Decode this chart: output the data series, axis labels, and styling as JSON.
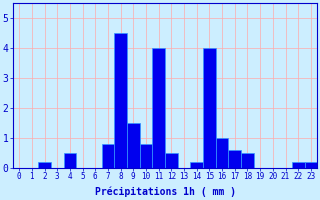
{
  "hours": [
    0,
    1,
    2,
    3,
    4,
    5,
    6,
    7,
    8,
    9,
    10,
    11,
    12,
    13,
    14,
    15,
    16,
    17,
    18,
    19,
    20,
    21,
    22,
    23
  ],
  "values": [
    0,
    0,
    0.2,
    0,
    0.5,
    0,
    0,
    0.8,
    4.5,
    1.5,
    0.8,
    4.0,
    0.5,
    0,
    0.2,
    4.0,
    1.0,
    0.6,
    0.5,
    0,
    0,
    0,
    0.2,
    0.2
  ],
  "bar_color": "#0000ee",
  "bar_edge_color": "#3399ff",
  "background_color": "#cceeff",
  "grid_color": "#ffaaaa",
  "xlabel": "Précipitations 1h ( mm )",
  "ylim": [
    0,
    5.5
  ],
  "yticks": [
    0,
    1,
    2,
    3,
    4,
    5
  ],
  "label_color": "#0000cc",
  "tick_color": "#0000cc",
  "xlabel_fontsize": 7,
  "tick_fontsize": 5.5
}
